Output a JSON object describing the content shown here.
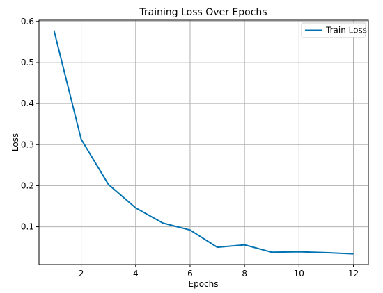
{
  "chart_data": {
    "type": "line",
    "title": "Training Loss Over Epochs",
    "xlabel": "Epochs",
    "ylabel": "Loss",
    "xlim": [
      0.45,
      12.55
    ],
    "ylim": [
      0.008,
      0.603
    ],
    "xticks": [
      2,
      4,
      6,
      8,
      10,
      12
    ],
    "yticks": [
      0.1,
      0.2,
      0.3,
      0.4,
      0.5,
      0.6
    ],
    "grid": true,
    "legend_position": "top-right",
    "series": [
      {
        "name": "Train Loss",
        "color": "#0072B2",
        "x": [
          1,
          2,
          3,
          4,
          5,
          6,
          7,
          8,
          9,
          10,
          11,
          12
        ],
        "y": [
          0.578,
          0.313,
          0.203,
          0.146,
          0.109,
          0.092,
          0.05,
          0.056,
          0.038,
          0.039,
          0.037,
          0.034
        ]
      }
    ]
  }
}
